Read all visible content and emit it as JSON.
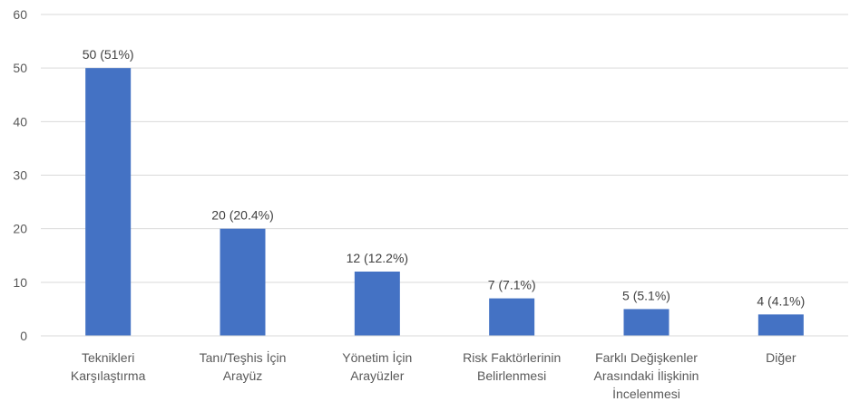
{
  "chart_data": {
    "type": "bar",
    "categories": [
      [
        "Teknikleri",
        "Karşılaştırma"
      ],
      [
        "Tanı/Teşhis İçin",
        "Arayüz"
      ],
      [
        "Yönetim İçin",
        "Arayüzler"
      ],
      [
        "Risk Faktörlerinin",
        "Belirlenmesi"
      ],
      [
        "Farklı Değişkenler",
        "Arasındaki İlişkinin",
        "İncelenmesi"
      ],
      [
        "Diğer"
      ]
    ],
    "values": [
      50,
      20,
      12,
      7,
      5,
      4
    ],
    "data_labels": [
      "50 (51%)",
      "20 (20.4%)",
      "12 (12.2%)",
      "7 (7.1%)",
      "5 (5.1%)",
      "4 (4.1%)"
    ],
    "y_ticks": [
      "0",
      "10",
      "20",
      "30",
      "40",
      "50",
      "60"
    ],
    "ylim": [
      0,
      60
    ],
    "grid": true,
    "bar_color": "#4472c4",
    "title": "",
    "xlabel": "",
    "ylabel": ""
  }
}
